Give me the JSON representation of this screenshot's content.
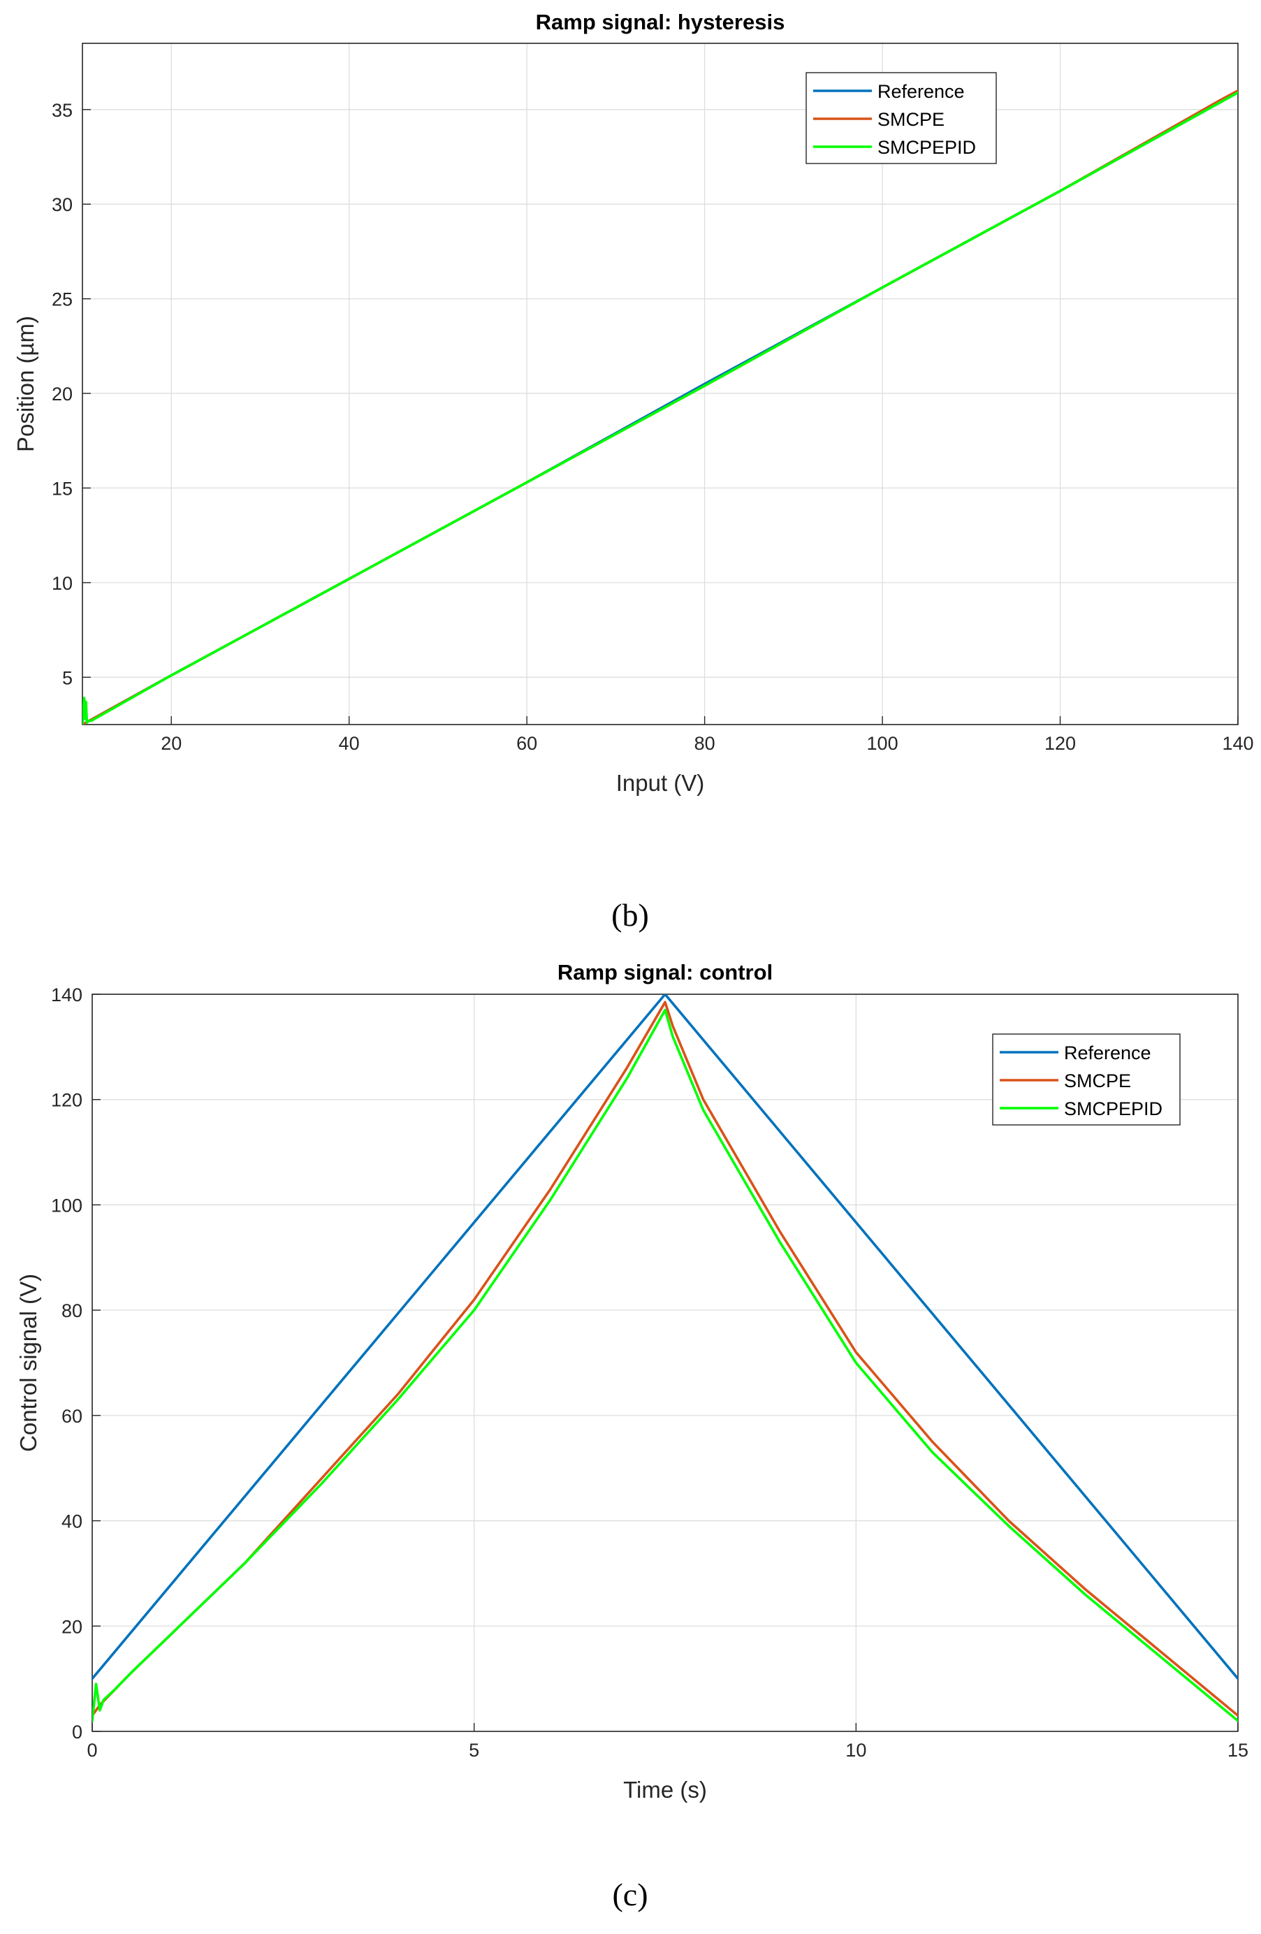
{
  "colors": {
    "reference": "#0072BD",
    "smcpe": "#D95319",
    "smcpepid": "#00FF00",
    "grid": "#DEDEDE",
    "axis": "#262626"
  },
  "captions": {
    "b": "(b)",
    "c": "(c)"
  },
  "chart_data": [
    {
      "type": "line",
      "title": "Ramp signal: hysteresis",
      "xlabel": "Input (V)",
      "ylabel": "Position (µm)",
      "xlim": [
        10,
        140
      ],
      "ylim": [
        2.5,
        38.5
      ],
      "xticks": [
        20,
        40,
        60,
        80,
        100,
        120,
        140
      ],
      "yticks": [
        5,
        10,
        15,
        20,
        25,
        30,
        35
      ],
      "grid": true,
      "legend_position": "top-right",
      "series": [
        {
          "name": "Reference",
          "color": "#0072BD",
          "x": [
            10,
            20,
            40,
            60,
            80,
            100,
            120,
            140
          ],
          "y": [
            2.5,
            5.1,
            10.2,
            15.3,
            20.5,
            25.6,
            30.7,
            35.9
          ]
        },
        {
          "name": "SMCPE",
          "color": "#D95319",
          "x": [
            10,
            20,
            40,
            60,
            80,
            100,
            120,
            138,
            140
          ],
          "y": [
            2.5,
            5.1,
            10.2,
            15.3,
            20.4,
            25.6,
            30.7,
            35.5,
            36.0
          ]
        },
        {
          "name": "SMCPEPID",
          "color": "#00FF00",
          "x": [
            10,
            10.2,
            10.3,
            10.4,
            10.5,
            10.6,
            11,
            20,
            40,
            60,
            80,
            100,
            120,
            140
          ],
          "y": [
            2.5,
            3.9,
            2.8,
            3.7,
            2.6,
            2.7,
            2.7,
            5.1,
            10.2,
            15.3,
            20.4,
            25.6,
            30.7,
            35.9
          ]
        }
      ]
    },
    {
      "type": "line",
      "title": "Ramp signal: control",
      "xlabel": "Time (s)",
      "ylabel": "Control signal (V)",
      "xlim": [
        0,
        15
      ],
      "ylim": [
        0,
        140
      ],
      "xticks": [
        0,
        5,
        10,
        15
      ],
      "yticks": [
        0,
        20,
        40,
        60,
        80,
        100,
        120,
        140
      ],
      "grid": true,
      "legend_position": "top-right",
      "series": [
        {
          "name": "Reference",
          "color": "#0072BD",
          "x": [
            0,
            7.5,
            15
          ],
          "y": [
            10,
            140,
            10
          ]
        },
        {
          "name": "SMCPE",
          "color": "#D95319",
          "x": [
            0,
            0.1,
            0.3,
            0.5,
            1,
            2,
            3,
            4,
            5,
            6,
            7,
            7.5,
            7.6,
            8,
            9,
            10,
            11,
            12,
            13,
            14,
            15
          ],
          "y": [
            3,
            5,
            8,
            11,
            18,
            32,
            48,
            64,
            82,
            103,
            126,
            138.5,
            134,
            120,
            95,
            72,
            55,
            40,
            27,
            15,
            3
          ]
        },
        {
          "name": "SMCPEPID",
          "color": "#00FF00",
          "x": [
            0,
            0.05,
            0.1,
            0.15,
            0.3,
            0.5,
            1,
            2,
            3,
            4,
            5,
            6,
            7,
            7.5,
            7.6,
            8,
            9,
            10,
            11,
            12,
            13,
            14,
            15
          ],
          "y": [
            2,
            9,
            4,
            6,
            8,
            11,
            18,
            32,
            47,
            63,
            80,
            101,
            124,
            137,
            132,
            118,
            93,
            70,
            53,
            39,
            26,
            14,
            2
          ]
        }
      ]
    }
  ]
}
